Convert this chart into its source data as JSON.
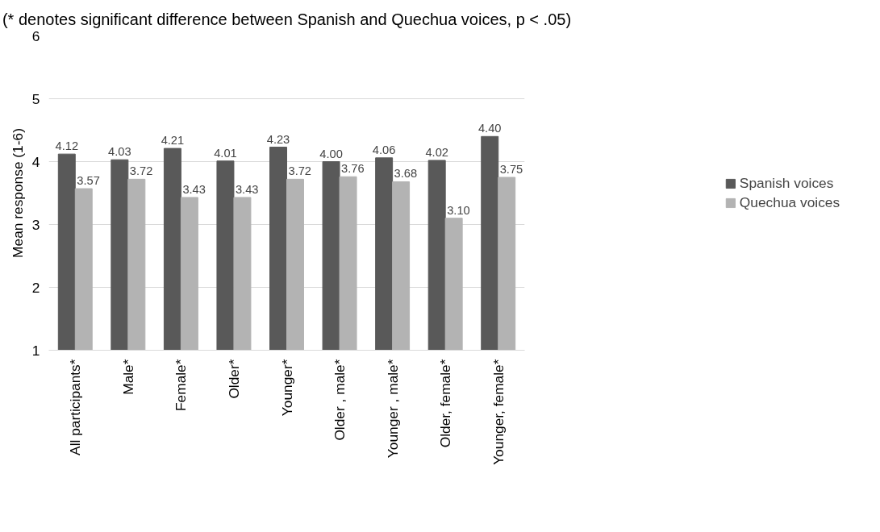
{
  "chart_data": {
    "type": "bar",
    "title": "(* denotes significant difference between Spanish and Quechua voices, p < .05)",
    "ylabel": "Mean response (1-6)",
    "categories": [
      "All participants*",
      "Male*",
      "Female*",
      "Older*",
      "Younger*",
      "Older , male*",
      "Younger , male*",
      "Older, female*",
      "Younger, female*"
    ],
    "series": [
      {
        "name": "Spanish voices",
        "color": "#595959",
        "values": [
          4.12,
          4.03,
          4.21,
          4.01,
          4.23,
          4.0,
          4.06,
          4.02,
          4.4
        ],
        "value_labels": [
          "4.12",
          "4.03",
          "4.21",
          "4.01",
          "4.23",
          "4.00",
          "4.06",
          "4.02",
          "4.40"
        ]
      },
      {
        "name": "Quechua voices",
        "color": "#b3b3b3",
        "values": [
          3.57,
          3.72,
          3.43,
          3.43,
          3.72,
          3.76,
          3.68,
          3.1,
          3.75
        ],
        "value_labels": [
          "3.57",
          "3.72",
          "3.43",
          "3.43",
          "3.72",
          "3.76",
          "3.68",
          "3.10",
          "3.75"
        ]
      }
    ],
    "ylim": [
      1,
      6
    ],
    "yticks": [
      1,
      2,
      3,
      4,
      5,
      6
    ],
    "grid": "y",
    "legend": "right"
  }
}
